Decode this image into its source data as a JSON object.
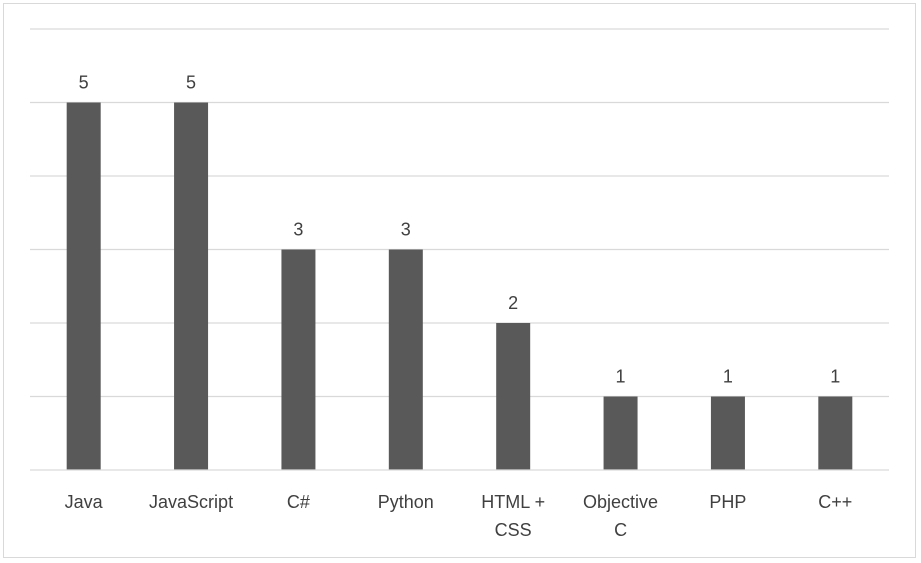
{
  "chart_data": {
    "type": "bar",
    "title": "",
    "xlabel": "",
    "ylabel": "",
    "categories": [
      "Java",
      "JavaScript",
      "C#",
      "Python",
      "HTML + CSS",
      "Objective C",
      "PHP",
      "C++"
    ],
    "category_lines": [
      [
        "Java"
      ],
      [
        "JavaScript"
      ],
      [
        "C#"
      ],
      [
        "Python"
      ],
      [
        "HTML +",
        "CSS"
      ],
      [
        "Objective",
        "C"
      ],
      [
        "PHP"
      ],
      [
        "C++"
      ]
    ],
    "values": [
      5,
      5,
      3,
      3,
      2,
      1,
      1,
      1
    ],
    "data_labels": [
      "5",
      "5",
      "3",
      "3",
      "2",
      "1",
      "1",
      "1"
    ],
    "ylim": [
      0,
      6
    ],
    "grid": true,
    "legend": "none",
    "colors": {
      "bar": "#595959",
      "grid": "#d9d9d9",
      "text": "#404040"
    }
  }
}
